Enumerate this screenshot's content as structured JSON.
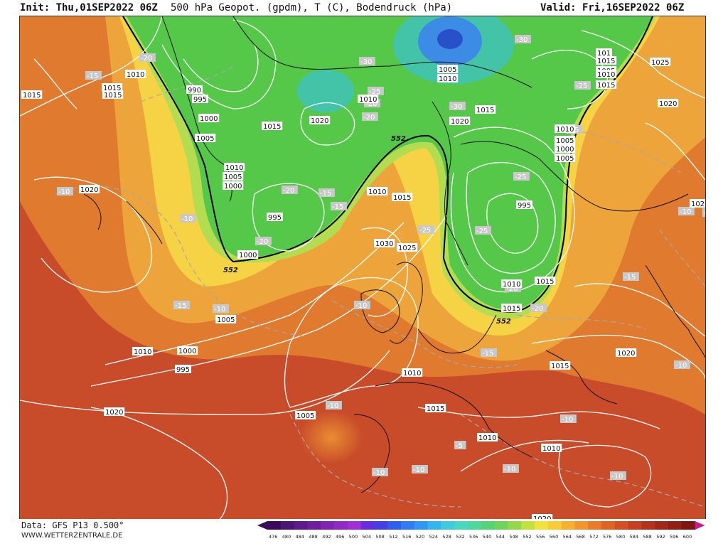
{
  "header": {
    "init": "Init: Thu,01SEP2022 06Z",
    "title": "500 hPa Geopot. (gpdm), T (C), Bodendruck (hPa)",
    "valid": "Valid: Fri,16SEP2022 06Z"
  },
  "footer": {
    "data_source": "Data: GFS P13 0.500°",
    "website": "WWW.WETTERZENTRALE.DE"
  },
  "legend": {
    "unit": "gpdm",
    "ticks": [
      "476",
      "480",
      "484",
      "488",
      "492",
      "496",
      "500",
      "504",
      "508",
      "512",
      "516",
      "520",
      "524",
      "528",
      "532",
      "536",
      "540",
      "544",
      "548",
      "552",
      "556",
      "560",
      "564",
      "568",
      "572",
      "576",
      "580",
      "584",
      "588",
      "592",
      "596",
      "600"
    ],
    "colors": [
      "#3a0a5a",
      "#4b1476",
      "#5c1a8c",
      "#6e1fa0",
      "#8024b4",
      "#9228c6",
      "#a22cd6",
      "#6a2ce0",
      "#4440e6",
      "#2f5ef0",
      "#2f7cf5",
      "#2f98f5",
      "#36b4f0",
      "#3fcae0",
      "#48d8c0",
      "#4ed89c",
      "#55d476",
      "#6fd45a",
      "#94d84a",
      "#c2e03e",
      "#f0e43a",
      "#f7cd36",
      "#f5b030",
      "#f2952c",
      "#ec7a28",
      "#e06224",
      "#d54f22",
      "#c63f20",
      "#b5321d",
      "#a4281a",
      "#931f17",
      "#801512"
    ],
    "arrow_color": "#c41e8a"
  },
  "map": {
    "colors": {
      "background": "#c84b2a",
      "orange": "#df7a2e",
      "amber": "#eda43a",
      "yellow": "#f6d245",
      "pale_green": "#b4dc50",
      "green": "#55c84a",
      "teal": "#43c4a8",
      "blue": "#3c8ce6",
      "dark_blue": "#2850c8",
      "deep_red": "#b83d24",
      "isobar": "#ffffff",
      "coast": "#111111"
    },
    "geopotential_labels": [
      "552",
      "552",
      "552"
    ],
    "pressure_labels": [
      "1010",
      "1015",
      "1015",
      "990",
      "995",
      "1000",
      "1005",
      "1010",
      "1005",
      "1000",
      "995",
      "1000",
      "1015",
      "1020",
      "1010",
      "1005",
      "1010",
      "1015",
      "1005",
      "1000",
      "1010",
      "1005",
      "995",
      "1020",
      "1010",
      "1015",
      "1025",
      "1030",
      "1020",
      "1015",
      "1010",
      "1005",
      "1000",
      "995",
      "1005",
      "1010",
      "1015",
      "1010",
      "1010",
      "1015",
      "1020",
      "1015",
      "1020",
      "1025",
      "1020",
      "1010",
      "1015",
      "1015",
      "1020",
      "1020",
      "101",
      "1005",
      "1010",
      "1015"
    ],
    "temperature_labels": [
      "-20",
      "-15",
      "-10",
      "-10",
      "-15",
      "-10",
      "-15",
      "-10",
      "-20",
      "-15",
      "-20",
      "-20",
      "-25",
      "-30",
      "-20",
      "-30",
      "-25",
      "-30",
      "-25",
      "-15",
      "-25",
      "-20",
      "-25",
      "-15",
      "-20",
      "-15",
      "-10",
      "-10",
      "-10",
      "-10",
      "-5",
      "-10",
      "-10",
      "-10",
      "-10",
      "-10"
    ]
  }
}
